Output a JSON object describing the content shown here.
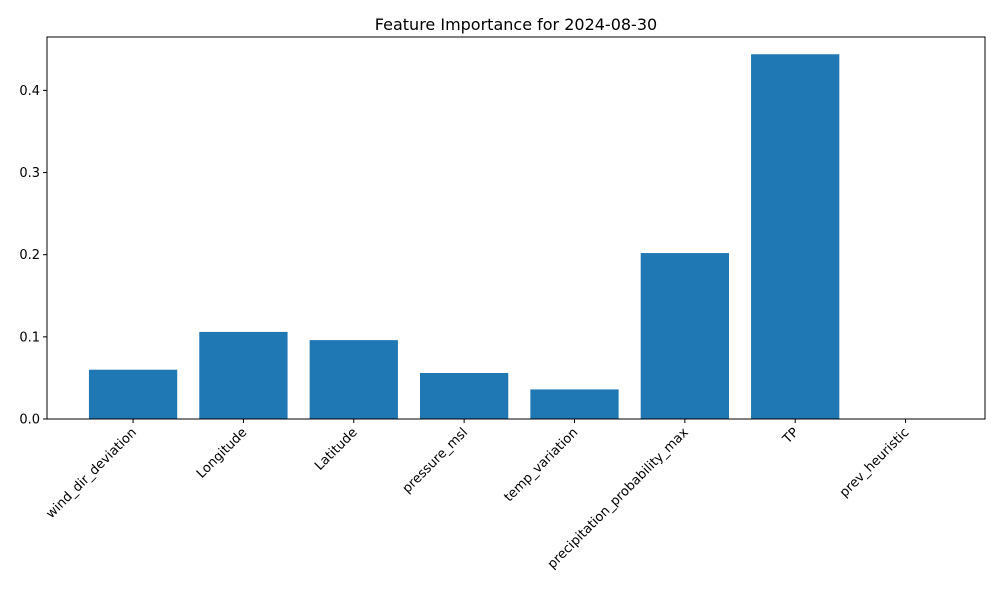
{
  "chart_data": {
    "type": "bar",
    "title": "Feature Importance for 2024-08-30",
    "xlabel": "",
    "ylabel": "",
    "categories": [
      "wind_dir_deviation",
      "Longitude",
      "Latitude",
      "pressure_msl",
      "temp_variation",
      "precipitation_probability_max",
      "TP",
      "prev_heuristic"
    ],
    "values": [
      0.06,
      0.106,
      0.096,
      0.056,
      0.036,
      0.202,
      0.444,
      0.0
    ],
    "ylim": [
      0,
      0.465
    ],
    "yticks": [
      0.0,
      0.1,
      0.2,
      0.3,
      0.4
    ],
    "ytick_labels": [
      "0.0",
      "0.1",
      "0.2",
      "0.3",
      "0.4"
    ],
    "bar_color": "#1f77b4",
    "grid": false,
    "legend": "none"
  }
}
